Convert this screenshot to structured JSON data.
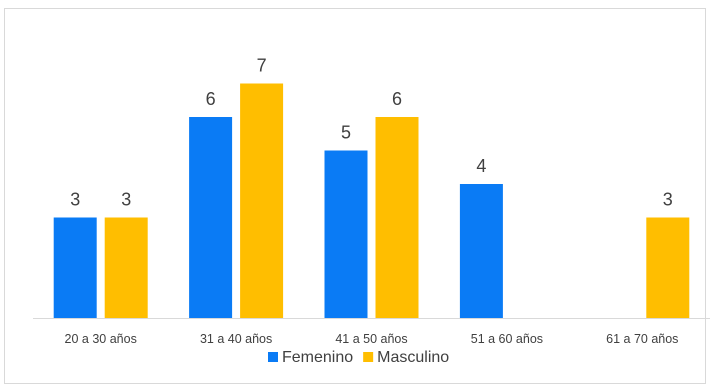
{
  "chart_data": {
    "type": "bar",
    "categories": [
      "20 a 30 años",
      "31 a 40 años",
      "41 a 50 años",
      "51 a 60 años",
      "61 a 70 años"
    ],
    "series": [
      {
        "name": "Femenino",
        "values": [
          3,
          6,
          5,
          4,
          null
        ],
        "color": "#0A7BF5"
      },
      {
        "name": "Masculino",
        "values": [
          3,
          7,
          6,
          null,
          3
        ],
        "color": "#FFBE00"
      }
    ],
    "ylim": [
      0,
      7
    ],
    "grid": false,
    "data_labels": true,
    "legend_position": "bottom"
  }
}
